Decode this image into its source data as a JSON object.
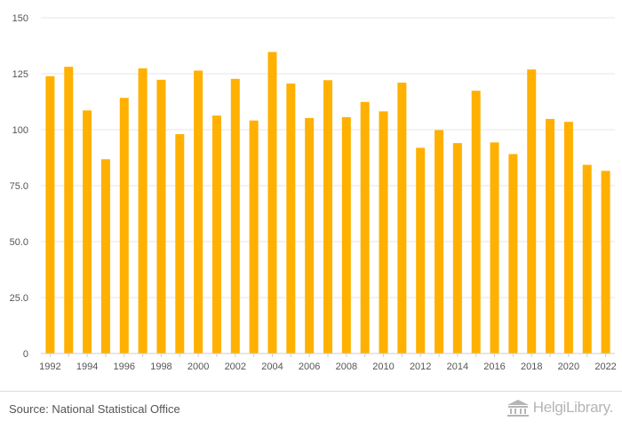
{
  "chart_data": {
    "type": "bar",
    "title": "",
    "xlabel": "",
    "ylabel": "",
    "ylim": [
      0,
      150
    ],
    "yticks": [
      "0",
      "25.0",
      "50.0",
      "75.0",
      "100",
      "125",
      "150"
    ],
    "x_tick_labels": [
      "1992",
      "1994",
      "1996",
      "1998",
      "2000",
      "2002",
      "2004",
      "2006",
      "2008",
      "2010",
      "2012",
      "2014",
      "2016",
      "2018",
      "2020",
      "2022"
    ],
    "grid": true,
    "bar_color": "#FFB000",
    "categories": [
      "1992",
      "1993",
      "1994",
      "1995",
      "1996",
      "1997",
      "1998",
      "1999",
      "2000",
      "2001",
      "2002",
      "2003",
      "2004",
      "2005",
      "2006",
      "2007",
      "2008",
      "2009",
      "2010",
      "2011",
      "2012",
      "2013",
      "2014",
      "2015",
      "2016",
      "2017",
      "2018",
      "2019",
      "2020",
      "2021",
      "2022"
    ],
    "values": [
      123.9,
      128.1,
      108.6,
      86.8,
      114.2,
      127.4,
      122.3,
      98.0,
      126.4,
      106.3,
      122.7,
      104.1,
      134.7,
      120.6,
      105.2,
      122.1,
      105.6,
      112.4,
      108.2,
      121.0,
      91.9,
      99.8,
      94.0,
      117.4,
      94.3,
      89.1,
      126.9,
      104.8,
      103.5,
      84.3,
      81.6
    ]
  },
  "footer": {
    "source": "Source: National Statistical Office",
    "brand": "HelgiLibrary."
  },
  "colors": {
    "bar": "#FFB000",
    "grid": "#e6e6e6",
    "text": "#555555",
    "brand": "#b5b5b5"
  }
}
